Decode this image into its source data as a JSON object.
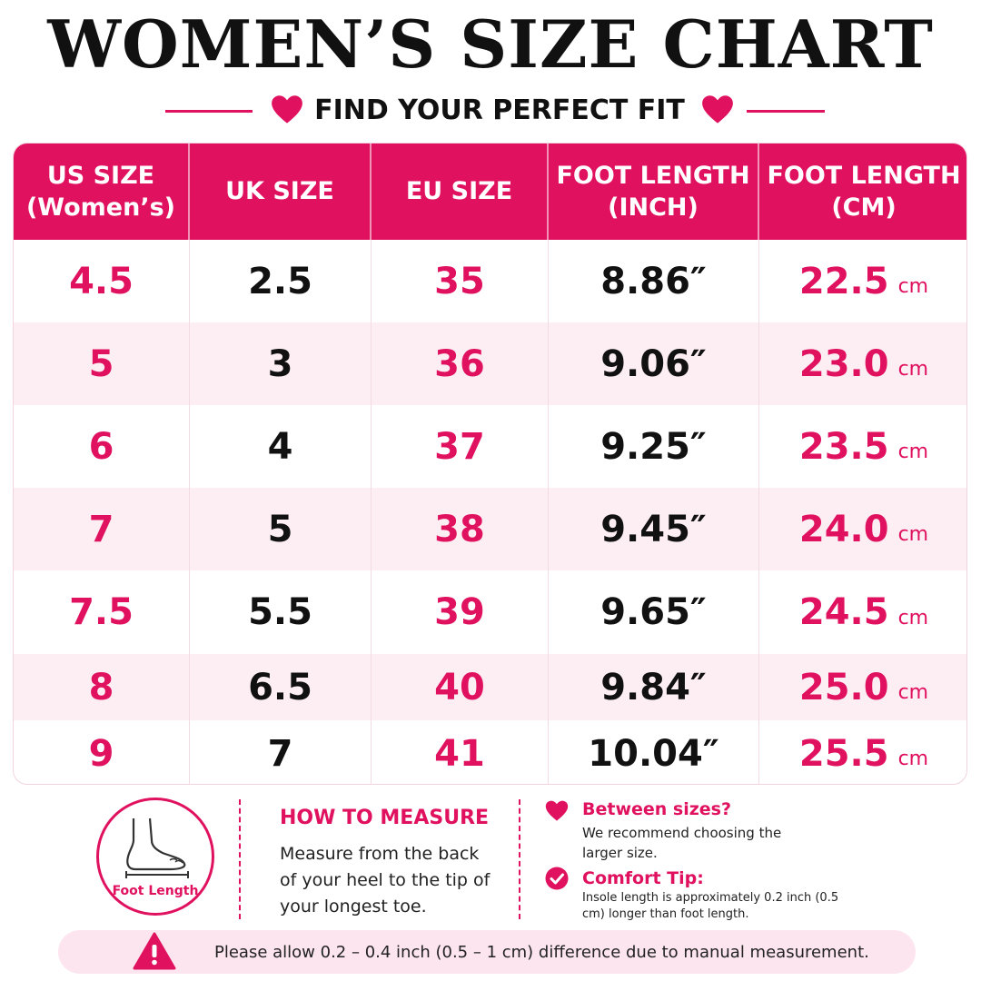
{
  "header": {
    "title": "WOMEN’S SIZE CHART",
    "subtitle": "FIND YOUR PERFECT FIT"
  },
  "colors": {
    "accent": "#e0115f",
    "row_alt": "#fdeef3"
  },
  "table": {
    "columns": [
      {
        "line1": "US SIZE",
        "line2": "(Women’s)"
      },
      {
        "line1": "UK SIZE",
        "line2": ""
      },
      {
        "line1": "EU SIZE",
        "line2": ""
      },
      {
        "line1": "FOOT LENGTH",
        "line2": "(INCH)"
      },
      {
        "line1": "FOOT LENGTH",
        "line2": "(CM)"
      }
    ],
    "unit_cm": "cm",
    "rows": [
      {
        "us": "4.5",
        "uk": "2.5",
        "eu": "35",
        "inch": "8.86″",
        "cm": "22.5"
      },
      {
        "us": "5",
        "uk": "3",
        "eu": "36",
        "inch": "9.06″",
        "cm": "23.0"
      },
      {
        "us": "6",
        "uk": "4",
        "eu": "37",
        "inch": "9.25″",
        "cm": "23.5"
      },
      {
        "us": "7",
        "uk": "5",
        "eu": "38",
        "inch": "9.45″",
        "cm": "24.0"
      },
      {
        "us": "7.5",
        "uk": "5.5",
        "eu": "39",
        "inch": "9.65″",
        "cm": "24.5"
      },
      {
        "us": "8",
        "uk": "6.5",
        "eu": "40",
        "inch": "9.84″",
        "cm": "25.0"
      },
      {
        "us": "9",
        "uk": "7",
        "eu": "41",
        "inch": "10.04″",
        "cm": "25.5"
      }
    ]
  },
  "measure": {
    "foot_label": "Foot Length",
    "icon": "foot-icon",
    "title": "HOW TO MEASURE",
    "text": "Measure from the back of your heel to the tip of your longest toe."
  },
  "tips": [
    {
      "icon": "heart-icon",
      "title": "Between sizes?",
      "text": "We recommend choosing the larger size."
    },
    {
      "icon": "check-circle-icon",
      "title": "Comfort Tip:",
      "text": "Insole length is approximately 0.2 inch (0.5 cm) longer than foot length."
    }
  ],
  "note": {
    "icon": "warning-icon",
    "text": "Please allow 0.2 – 0.4 inch (0.5 – 1 cm) difference due to manual measurement."
  }
}
